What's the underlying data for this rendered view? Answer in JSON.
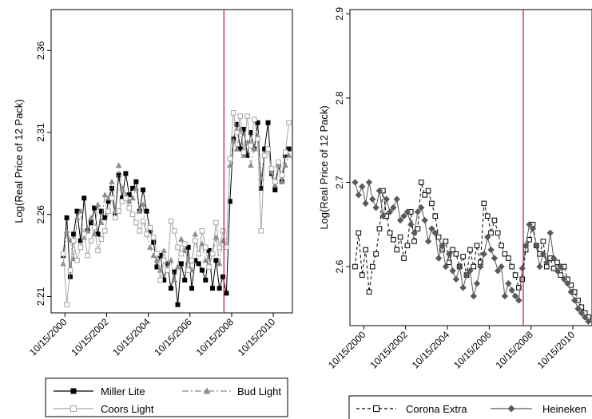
{
  "chart_data": [
    {
      "type": "line",
      "ylabel": "Log(Real Price of 12 Pack)",
      "xlabel": "",
      "x_ticks": [
        "10/15/2000",
        "10/15/2002",
        "10/15/2004",
        "10/15/2006",
        "10/15/2008",
        "10/15/2010"
      ],
      "y_ticks": [
        "2.21",
        "2.26",
        "2.31",
        "2.36"
      ],
      "ylim": [
        2.2,
        2.385
      ],
      "xlim": [
        "2000-02-15",
        "2011-09-15"
      ],
      "vline": "2008-06-01",
      "vline_color": "#c8102e",
      "legend_position": "bottom",
      "series": [
        {
          "name": "Miller Lite",
          "color": "#000000",
          "marker": "square-filled",
          "dash": "solid",
          "x": [
            "2000-09-15",
            "2000-11-15",
            "2001-01-15",
            "2001-03-15",
            "2001-05-15",
            "2001-07-15",
            "2001-09-15",
            "2001-11-15",
            "2002-01-15",
            "2002-03-15",
            "2002-05-15",
            "2002-07-15",
            "2002-09-15",
            "2002-11-15",
            "2003-01-15",
            "2003-03-15",
            "2003-05-15",
            "2003-07-15",
            "2003-09-15",
            "2003-11-15",
            "2004-01-15",
            "2004-03-15",
            "2004-05-15",
            "2004-07-15",
            "2004-09-15",
            "2004-11-15",
            "2005-01-15",
            "2005-03-15",
            "2005-05-15",
            "2005-07-15",
            "2005-09-15",
            "2005-11-15",
            "2006-01-15",
            "2006-03-15",
            "2006-05-15",
            "2006-07-15",
            "2006-09-15",
            "2006-11-15",
            "2007-01-15",
            "2007-03-15",
            "2007-05-15",
            "2007-07-15",
            "2007-09-15",
            "2007-11-15",
            "2008-01-15",
            "2008-03-15",
            "2008-05-15",
            "2008-07-15",
            "2008-09-15",
            "2008-11-15",
            "2009-01-15",
            "2009-03-15",
            "2009-05-15",
            "2009-07-15",
            "2009-09-15",
            "2009-11-15",
            "2010-01-15",
            "2010-03-15",
            "2010-05-15",
            "2010-07-15",
            "2010-09-15",
            "2010-11-15",
            "2011-01-15",
            "2011-03-15",
            "2011-05-15",
            "2011-07-15"
          ],
          "values": [
            2.235,
            2.258,
            2.222,
            2.248,
            2.262,
            2.244,
            2.27,
            2.25,
            2.255,
            2.264,
            2.248,
            2.262,
            2.258,
            2.268,
            2.276,
            2.26,
            2.284,
            2.27,
            2.285,
            2.272,
            2.276,
            2.28,
            2.262,
            2.275,
            2.262,
            2.25,
            2.243,
            2.228,
            2.235,
            2.22,
            2.23,
            2.215,
            2.225,
            2.205,
            2.23,
            2.22,
            2.24,
            2.215,
            2.232,
            2.23,
            2.226,
            2.22,
            2.238,
            2.215,
            2.232,
            2.215,
            2.222,
            2.212,
            2.268,
            2.306,
            2.315,
            2.3,
            2.312,
            2.296,
            2.31,
            2.3,
            2.316,
            2.276,
            2.3,
            2.316,
            2.285,
            2.275,
            2.29,
            2.28,
            2.296,
            2.3
          ]
        },
        {
          "name": "Bud Light",
          "color": "#8c8c8c",
          "marker": "triangle-filled",
          "dash": "longdash-dot",
          "x": [
            "2000-09-15",
            "2000-11-15",
            "2001-01-15",
            "2001-03-15",
            "2001-05-15",
            "2001-07-15",
            "2001-09-15",
            "2001-11-15",
            "2002-01-15",
            "2002-03-15",
            "2002-05-15",
            "2002-07-15",
            "2002-09-15",
            "2002-11-15",
            "2003-01-15",
            "2003-03-15",
            "2003-05-15",
            "2003-07-15",
            "2003-09-15",
            "2003-11-15",
            "2004-01-15",
            "2004-03-15",
            "2004-05-15",
            "2004-07-15",
            "2004-09-15",
            "2004-11-15",
            "2005-01-15",
            "2005-03-15",
            "2005-05-15",
            "2005-07-15",
            "2005-09-15",
            "2005-11-15",
            "2006-01-15",
            "2006-03-15",
            "2006-05-15",
            "2006-07-15",
            "2006-09-15",
            "2006-11-15",
            "2007-01-15",
            "2007-03-15",
            "2007-05-15",
            "2007-07-15",
            "2007-09-15",
            "2007-11-15",
            "2008-01-15",
            "2008-03-15",
            "2008-05-15",
            "2008-07-15",
            "2008-09-15",
            "2008-11-15",
            "2009-01-15",
            "2009-03-15",
            "2009-05-15",
            "2009-07-15",
            "2009-09-15",
            "2009-11-15",
            "2010-01-15",
            "2010-03-15",
            "2010-05-15",
            "2010-07-15",
            "2010-09-15",
            "2010-11-15",
            "2011-01-15",
            "2011-03-15",
            "2011-05-15",
            "2011-07-15"
          ],
          "values": [
            2.23,
            2.25,
            2.244,
            2.233,
            2.258,
            2.262,
            2.246,
            2.25,
            2.258,
            2.248,
            2.266,
            2.255,
            2.272,
            2.27,
            2.28,
            2.262,
            2.29,
            2.276,
            2.272,
            2.268,
            2.27,
            2.276,
            2.262,
            2.266,
            2.248,
            2.24,
            2.235,
            2.232,
            2.226,
            2.238,
            2.226,
            2.232,
            2.22,
            2.228,
            2.245,
            2.238,
            2.232,
            2.226,
            2.248,
            2.236,
            2.242,
            2.232,
            2.228,
            2.236,
            2.246,
            2.23,
            2.244,
            2.24,
            2.29,
            2.305,
            2.3,
            2.312,
            2.296,
            2.304,
            2.29,
            2.3,
            2.308,
            2.282,
            2.296,
            2.3,
            2.286,
            2.278,
            2.29,
            2.28,
            2.29,
            2.296
          ]
        },
        {
          "name": "Coors Light",
          "color": "#a6a6a6",
          "marker": "square-hollow",
          "dash": "solid",
          "x": [
            "2000-09-15",
            "2000-11-15",
            "2001-01-15",
            "2001-03-15",
            "2001-05-15",
            "2001-07-15",
            "2001-09-15",
            "2001-11-15",
            "2002-01-15",
            "2002-03-15",
            "2002-05-15",
            "2002-07-15",
            "2002-09-15",
            "2002-11-15",
            "2003-01-15",
            "2003-03-15",
            "2003-05-15",
            "2003-07-15",
            "2003-09-15",
            "2003-11-15",
            "2004-01-15",
            "2004-03-15",
            "2004-05-15",
            "2004-07-15",
            "2004-09-15",
            "2004-11-15",
            "2005-01-15",
            "2005-03-15",
            "2005-05-15",
            "2005-07-15",
            "2005-09-15",
            "2005-11-15",
            "2006-01-15",
            "2006-03-15",
            "2006-05-15",
            "2006-07-15",
            "2006-09-15",
            "2006-11-15",
            "2007-01-15",
            "2007-03-15",
            "2007-05-15",
            "2007-07-15",
            "2007-09-15",
            "2007-11-15",
            "2008-01-15",
            "2008-03-15",
            "2008-05-15",
            "2008-07-15",
            "2008-09-15",
            "2008-11-15",
            "2009-01-15",
            "2009-03-15",
            "2009-05-15",
            "2009-07-15",
            "2009-09-15",
            "2009-11-15",
            "2010-01-15",
            "2010-03-15",
            "2010-05-15",
            "2010-07-15",
            "2010-09-15",
            "2010-11-15",
            "2011-01-15",
            "2011-03-15",
            "2011-05-15",
            "2011-07-15"
          ],
          "values": [
            2.236,
            2.205,
            2.226,
            2.244,
            2.232,
            2.24,
            2.248,
            2.235,
            2.244,
            2.252,
            2.238,
            2.245,
            2.25,
            2.262,
            2.27,
            2.258,
            2.262,
            2.268,
            2.27,
            2.264,
            2.26,
            2.255,
            2.25,
            2.256,
            2.248,
            2.252,
            2.246,
            2.236,
            2.22,
            2.232,
            2.226,
            2.256,
            2.25,
            2.24,
            2.236,
            2.242,
            2.226,
            2.232,
            2.244,
            2.236,
            2.25,
            2.24,
            2.228,
            2.236,
            2.255,
            2.24,
            2.25,
            2.24,
            2.294,
            2.322,
            2.31,
            2.32,
            2.298,
            2.32,
            2.302,
            2.318,
            2.306,
            2.25,
            2.296,
            2.3,
            2.288,
            2.28,
            2.292,
            2.284,
            2.298,
            2.316
          ]
        }
      ]
    },
    {
      "type": "line",
      "ylabel": "Log(Real Price of 12 Pack)",
      "xlabel": "",
      "x_ticks": [
        "10/15/2000",
        "10/15/2002",
        "10/15/2004",
        "10/15/2006",
        "10/15/2008",
        "10/15/2010"
      ],
      "y_ticks": [
        "2.6",
        "2.7",
        "2.8",
        "2.9"
      ],
      "ylim": [
        2.53,
        2.905
      ],
      "xlim": [
        "2000-02-15",
        "2011-09-15"
      ],
      "vline": "2008-06-01",
      "vline_color": "#c8102e",
      "legend_position": "bottom",
      "series": [
        {
          "name": "Corona Extra",
          "color": "#000000",
          "marker": "square-hollow",
          "dash": "dash",
          "x": [
            "2000-05-15",
            "2000-07-15",
            "2000-09-15",
            "2000-11-15",
            "2001-01-15",
            "2001-03-15",
            "2001-05-15",
            "2001-07-15",
            "2001-09-15",
            "2001-11-15",
            "2002-01-15",
            "2002-03-15",
            "2002-05-15",
            "2002-07-15",
            "2002-09-15",
            "2002-11-15",
            "2003-01-15",
            "2003-03-15",
            "2003-05-15",
            "2003-07-15",
            "2003-09-15",
            "2003-11-15",
            "2004-01-15",
            "2004-03-15",
            "2004-05-15",
            "2004-07-15",
            "2004-09-15",
            "2004-11-15",
            "2005-01-15",
            "2005-03-15",
            "2005-05-15",
            "2005-07-15",
            "2005-09-15",
            "2005-11-15",
            "2006-01-15",
            "2006-03-15",
            "2006-05-15",
            "2006-07-15",
            "2006-09-15",
            "2006-11-15",
            "2007-01-15",
            "2007-03-15",
            "2007-05-15",
            "2007-07-15",
            "2007-09-15",
            "2007-11-15",
            "2008-01-15",
            "2008-03-15",
            "2008-05-15",
            "2008-07-15",
            "2008-09-15",
            "2008-11-15",
            "2009-01-15",
            "2009-03-15",
            "2009-05-15",
            "2009-07-15",
            "2009-09-15",
            "2009-11-15",
            "2010-01-15",
            "2010-03-15",
            "2010-05-15",
            "2010-07-15",
            "2010-09-15",
            "2010-11-15",
            "2011-01-15",
            "2011-03-15",
            "2011-05-15",
            "2011-07-15"
          ],
          "values": [
            2.6,
            2.64,
            2.59,
            2.62,
            2.57,
            2.6,
            2.615,
            2.645,
            2.69,
            2.66,
            2.64,
            2.632,
            2.62,
            2.635,
            2.61,
            2.625,
            2.665,
            2.63,
            2.645,
            2.7,
            2.685,
            2.69,
            2.675,
            2.66,
            2.635,
            2.62,
            2.63,
            2.605,
            2.62,
            2.615,
            2.6,
            2.612,
            2.59,
            2.62,
            2.6,
            2.625,
            2.605,
            2.675,
            2.66,
            2.64,
            2.655,
            2.64,
            2.625,
            2.615,
            2.61,
            2.6,
            2.59,
            2.575,
            2.585,
            2.62,
            2.632,
            2.65,
            2.625,
            2.615,
            2.63,
            2.6,
            2.61,
            2.598,
            2.605,
            2.59,
            2.6,
            2.585,
            2.578,
            2.57,
            2.56,
            2.552,
            2.545,
            2.54
          ]
        },
        {
          "name": "Heineken",
          "color": "#595959",
          "marker": "diamond-filled",
          "dash": "solid",
          "x": [
            "2000-05-15",
            "2000-07-15",
            "2000-09-15",
            "2000-11-15",
            "2001-01-15",
            "2001-03-15",
            "2001-05-15",
            "2001-07-15",
            "2001-09-15",
            "2001-11-15",
            "2002-01-15",
            "2002-03-15",
            "2002-05-15",
            "2002-07-15",
            "2002-09-15",
            "2002-11-15",
            "2003-01-15",
            "2003-03-15",
            "2003-05-15",
            "2003-07-15",
            "2003-09-15",
            "2003-11-15",
            "2004-01-15",
            "2004-03-15",
            "2004-05-15",
            "2004-07-15",
            "2004-09-15",
            "2004-11-15",
            "2005-01-15",
            "2005-03-15",
            "2005-05-15",
            "2005-07-15",
            "2005-09-15",
            "2005-11-15",
            "2006-01-15",
            "2006-03-15",
            "2006-05-15",
            "2006-07-15",
            "2006-09-15",
            "2006-11-15",
            "2007-01-15",
            "2007-03-15",
            "2007-05-15",
            "2007-07-15",
            "2007-09-15",
            "2007-11-15",
            "2008-01-15",
            "2008-03-15",
            "2008-05-15",
            "2008-07-15",
            "2008-09-15",
            "2008-11-15",
            "2009-01-15",
            "2009-03-15",
            "2009-05-15",
            "2009-07-15",
            "2009-09-15",
            "2009-11-15",
            "2010-01-15",
            "2010-03-15",
            "2010-05-15",
            "2010-07-15",
            "2010-09-15",
            "2010-11-15",
            "2011-01-15",
            "2011-03-15",
            "2011-05-15",
            "2011-07-15"
          ],
          "values": [
            2.7,
            2.685,
            2.695,
            2.675,
            2.7,
            2.68,
            2.67,
            2.69,
            2.66,
            2.68,
            2.665,
            2.67,
            2.68,
            2.655,
            2.66,
            2.665,
            2.65,
            2.64,
            2.665,
            2.67,
            2.655,
            2.63,
            2.645,
            2.64,
            2.61,
            2.625,
            2.6,
            2.615,
            2.595,
            2.585,
            2.6,
            2.575,
            2.59,
            2.595,
            2.565,
            2.58,
            2.6,
            2.615,
            2.635,
            2.62,
            2.61,
            2.595,
            2.6,
            2.565,
            2.58,
            2.572,
            2.565,
            2.56,
            2.598,
            2.625,
            2.65,
            2.645,
            2.625,
            2.6,
            2.615,
            2.605,
            2.64,
            2.61,
            2.595,
            2.6,
            2.585,
            2.58,
            2.57,
            2.56,
            2.55,
            2.545,
            2.54,
            2.535
          ]
        }
      ]
    }
  ]
}
